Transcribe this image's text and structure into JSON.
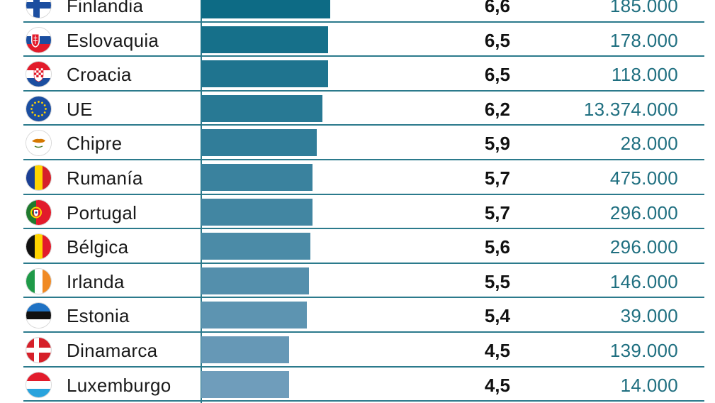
{
  "chart_data": {
    "type": "bar",
    "orientation": "horizontal",
    "categories": [
      "Finlandia",
      "Eslovaquia",
      "Croacia",
      "UE",
      "Chipre",
      "Rumanía",
      "Portugal",
      "Bélgica",
      "Irlanda",
      "Estonia",
      "Dinamarca",
      "Luxemburgo"
    ],
    "values": [
      6.6,
      6.5,
      6.5,
      6.2,
      5.9,
      5.7,
      5.7,
      5.6,
      5.5,
      5.4,
      4.5,
      4.5
    ],
    "value_labels": [
      "6,6",
      "6,5",
      "6,5",
      "6,2",
      "5,9",
      "5,7",
      "5,7",
      "5,6",
      "5,5",
      "5,4",
      "4,5",
      "4,5"
    ],
    "second_column": [
      "185.000",
      "178.000",
      "118.000",
      "13.374.000",
      "28.000",
      "475.000",
      "296.000",
      "296.000",
      "146.000",
      "39.000",
      "139.000",
      "14.000"
    ],
    "flags": [
      "finland-flag-icon",
      "slovakia-flag-icon",
      "croatia-flag-icon",
      "eu-flag-icon",
      "cyprus-flag-icon",
      "romania-flag-icon",
      "portugal-flag-icon",
      "belgium-flag-icon",
      "ireland-flag-icon",
      "estonia-flag-icon",
      "denmark-flag-icon",
      "luxembourg-flag-icon"
    ],
    "colors": {
      "bar_dark": "#0d6b85",
      "bar_light": "#6f9dbb",
      "rule": "#2b7a8c",
      "second_column_text": "#1f6f80"
    },
    "grid": false,
    "legend": "none"
  }
}
